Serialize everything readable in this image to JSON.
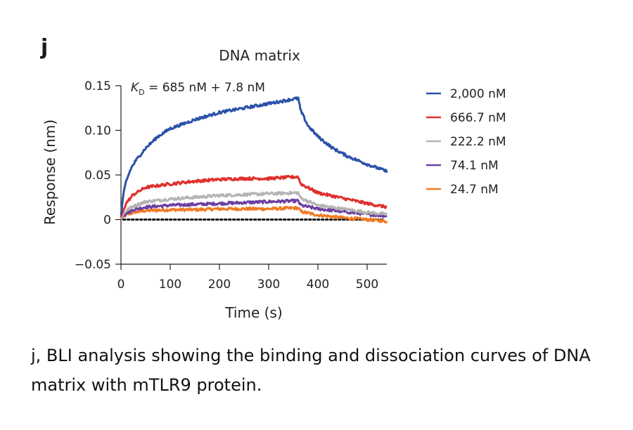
{
  "panel_letter": "j",
  "caption": "j, BLI analysis showing the binding and dissociation curves of DNA matrix with mTLR9 protein.",
  "chart_data": {
    "type": "line",
    "title": "DNA matrix",
    "xlabel": "Time (s)",
    "ylabel": "Response (nm)",
    "xlim": [
      0,
      540
    ],
    "ylim": [
      -0.05,
      0.15
    ],
    "x_ticks": [
      0,
      100,
      200,
      300,
      400,
      500
    ],
    "x_tick_labels": [
      "0",
      "100",
      "200",
      "300",
      "400",
      "500"
    ],
    "y_ticks": [
      -0.05,
      0,
      0.05,
      0.1,
      0.15
    ],
    "y_tick_labels": [
      "−0.05",
      "0",
      "0.05",
      "0.10",
      "0.15"
    ],
    "annotation": {
      "symbol": "K",
      "subscript": "D",
      "text": " = 685 nM + 7.8 nM"
    },
    "legend_position": "right",
    "grid": false,
    "baseline": {
      "y": 0,
      "style": "dotted",
      "color": "#111111"
    },
    "series": [
      {
        "name": "2,000 nM",
        "color": "#2a52a8",
        "x": [
          0,
          5,
          10,
          20,
          30,
          50,
          75,
          100,
          150,
          200,
          250,
          300,
          360,
          365,
          380,
          400,
          430,
          460,
          500,
          540
        ],
        "values": [
          0.005,
          0.028,
          0.042,
          0.057,
          0.066,
          0.08,
          0.093,
          0.102,
          0.112,
          0.12,
          0.125,
          0.13,
          0.136,
          0.122,
          0.105,
          0.093,
          0.08,
          0.071,
          0.062,
          0.054
        ]
      },
      {
        "name": "666.7 nM",
        "color": "#e0302c",
        "x": [
          0,
          10,
          25,
          50,
          100,
          150,
          200,
          250,
          300,
          360,
          365,
          400,
          450,
          500,
          540
        ],
        "values": [
          0.003,
          0.018,
          0.028,
          0.036,
          0.04,
          0.043,
          0.045,
          0.046,
          0.046,
          0.048,
          0.04,
          0.03,
          0.024,
          0.018,
          0.014
        ]
      },
      {
        "name": "222.2 nM",
        "color": "#b4b4b4",
        "x": [
          0,
          10,
          25,
          50,
          100,
          150,
          200,
          250,
          300,
          360,
          365,
          400,
          450,
          500,
          540
        ],
        "values": [
          0.002,
          0.01,
          0.015,
          0.02,
          0.023,
          0.025,
          0.027,
          0.028,
          0.029,
          0.03,
          0.024,
          0.016,
          0.012,
          0.008,
          0.006
        ]
      },
      {
        "name": "74.1 nM",
        "color": "#6b3fa0",
        "x": [
          0,
          10,
          25,
          50,
          100,
          150,
          200,
          250,
          300,
          360,
          365,
          400,
          450,
          500,
          540
        ],
        "values": [
          0.002,
          0.007,
          0.011,
          0.014,
          0.016,
          0.017,
          0.018,
          0.019,
          0.02,
          0.021,
          0.016,
          0.012,
          0.009,
          0.006,
          0.004
        ]
      },
      {
        "name": "24.7 nM",
        "color": "#f07a24",
        "x": [
          0,
          10,
          25,
          50,
          100,
          150,
          200,
          250,
          300,
          360,
          365,
          400,
          450,
          500,
          540
        ],
        "values": [
          0.001,
          0.005,
          0.008,
          0.01,
          0.011,
          0.011,
          0.012,
          0.012,
          0.012,
          0.013,
          0.009,
          0.005,
          0.002,
          0.0,
          -0.002
        ]
      }
    ]
  }
}
